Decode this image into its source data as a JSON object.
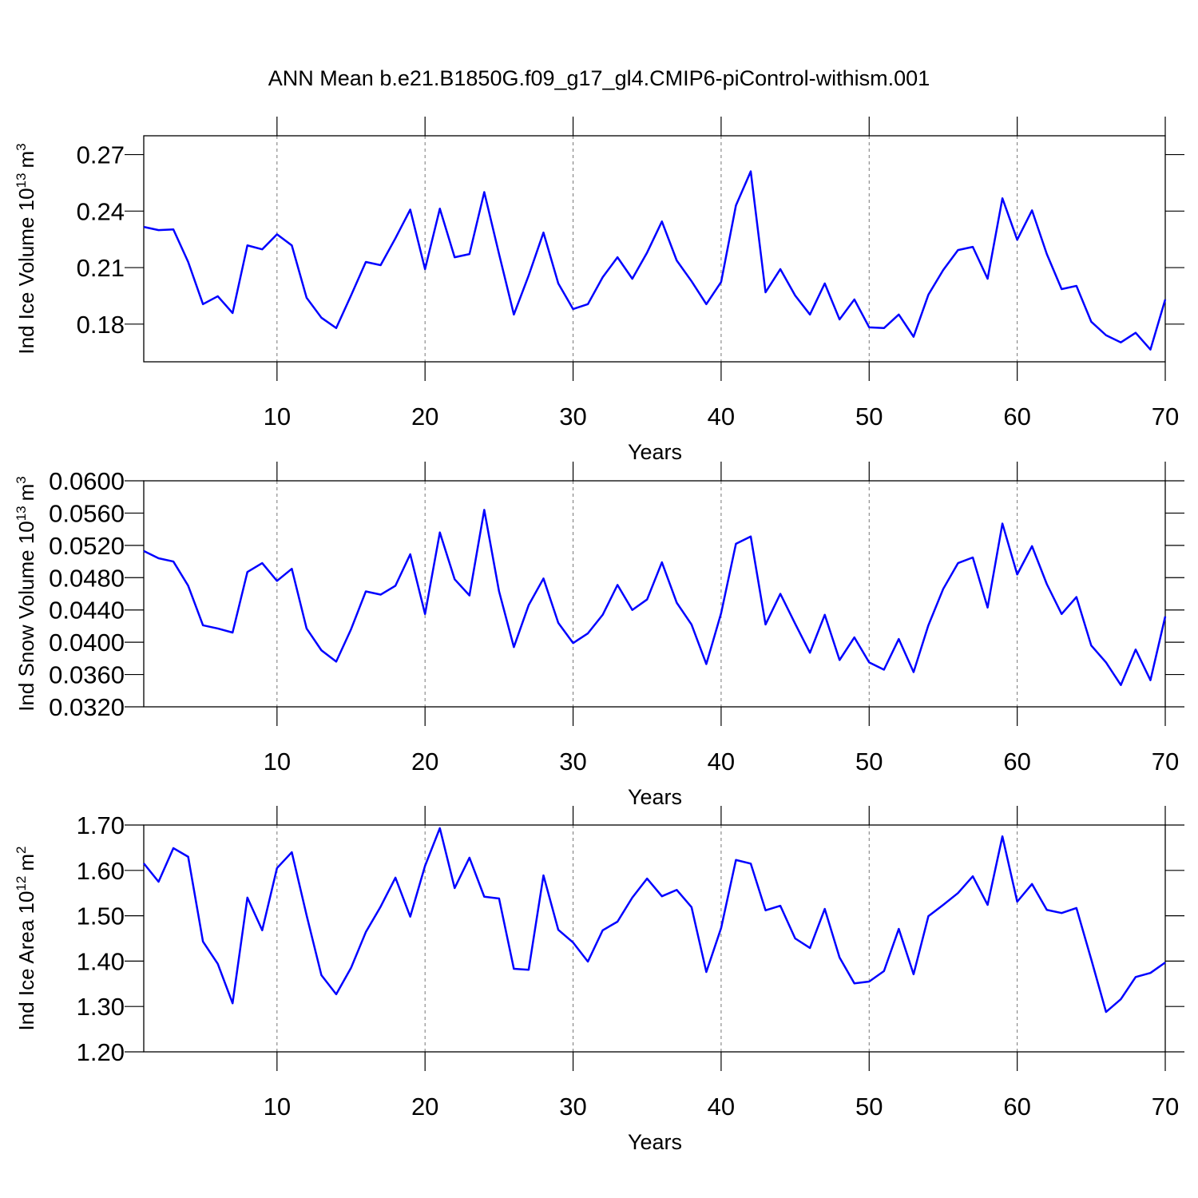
{
  "title": "ANN Mean b.e21.B1850G.f09_g17_gl4.CMIP6-piControl-withism.001",
  "chart_data": [
    {
      "type": "line",
      "xlabel": "Years",
      "ylabel": {
        "text": "Ind Ice Volume 10",
        "exp": "13",
        "unit": "m",
        "unit_exp": "3"
      },
      "xlim": [
        1,
        70
      ],
      "xticks": [
        10,
        20,
        30,
        40,
        50,
        60,
        70
      ],
      "ylim": [
        0.16,
        0.28
      ],
      "yticks": [
        0.18,
        0.21,
        0.24,
        0.27
      ],
      "xgrid": true,
      "x": [
        1,
        2,
        3,
        4,
        5,
        6,
        7,
        8,
        9,
        10,
        11,
        12,
        13,
        14,
        15,
        16,
        17,
        18,
        19,
        20,
        21,
        22,
        23,
        24,
        25,
        26,
        27,
        28,
        29,
        30,
        31,
        32,
        33,
        34,
        35,
        36,
        37,
        38,
        39,
        40,
        41,
        42,
        43,
        44,
        45,
        46,
        47,
        48,
        49,
        50,
        51,
        52,
        53,
        54,
        55,
        56,
        57,
        58,
        59,
        60,
        61,
        62,
        63,
        64,
        65,
        66,
        67,
        68,
        69,
        70
      ],
      "series": [
        {
          "color": "#0000ff",
          "values": [
            0.2316,
            0.2299,
            0.2303,
            0.213,
            0.1906,
            0.1948,
            0.1859,
            0.2218,
            0.2197,
            0.2277,
            0.2218,
            0.194,
            0.1834,
            0.1779,
            0.1952,
            0.213,
            0.2113,
            0.2256,
            0.2408,
            0.2092,
            0.2413,
            0.2155,
            0.2172,
            0.2501,
            0.2172,
            0.1851,
            0.2058,
            0.2286,
            0.2016,
            0.188,
            0.1906,
            0.2049,
            0.2155,
            0.2041,
            0.218,
            0.2345,
            0.2138,
            0.2028,
            0.1906,
            0.2024,
            0.243,
            0.2611,
            0.1969,
            0.2092,
            0.1952,
            0.1851,
            0.2016,
            0.1825,
            0.1931,
            0.1783,
            0.1779,
            0.1851,
            0.1733,
            0.1956,
            0.2087,
            0.2193,
            0.221,
            0.2041,
            0.2468,
            0.2248,
            0.2404,
            0.2172,
            0.1986,
            0.2003,
            0.1813,
            0.1741,
            0.1703,
            0.1754,
            0.1665,
            0.1931
          ]
        }
      ]
    },
    {
      "type": "line",
      "xlabel": "Years",
      "ylabel": {
        "text": "Ind Snow Volume 10",
        "exp": "13",
        "unit": "m",
        "unit_exp": "3"
      },
      "xlim": [
        1,
        70
      ],
      "xticks": [
        10,
        20,
        30,
        40,
        50,
        60,
        70
      ],
      "ylim": [
        0.032,
        0.06
      ],
      "yticks": [
        {
          "value": 0.032,
          "label": "0.0320"
        },
        {
          "value": 0.036,
          "label": "0.0360"
        },
        {
          "value": 0.04,
          "label": "0.0400"
        },
        {
          "value": 0.044,
          "label": "0.0440"
        },
        {
          "value": 0.048,
          "label": "0.0480"
        },
        {
          "value": 0.052,
          "label": "0.0520"
        },
        {
          "value": 0.056,
          "label": "0.0560"
        },
        {
          "value": 0.06,
          "label": "0.0600"
        }
      ],
      "xgrid": true,
      "x": [
        1,
        2,
        3,
        4,
        5,
        6,
        7,
        8,
        9,
        10,
        11,
        12,
        13,
        14,
        15,
        16,
        17,
        18,
        19,
        20,
        21,
        22,
        23,
        24,
        25,
        26,
        27,
        28,
        29,
        30,
        31,
        32,
        33,
        34,
        35,
        36,
        37,
        38,
        39,
        40,
        41,
        42,
        43,
        44,
        45,
        46,
        47,
        48,
        49,
        50,
        51,
        52,
        53,
        54,
        55,
        56,
        57,
        58,
        59,
        60,
        61,
        62,
        63,
        64,
        65,
        66,
        67,
        68,
        69,
        70
      ],
      "series": [
        {
          "color": "#0000ff",
          "values": [
            0.0513,
            0.0504,
            0.05,
            0.047,
            0.0421,
            0.0417,
            0.0412,
            0.0487,
            0.0498,
            0.0476,
            0.0491,
            0.0417,
            0.039,
            0.0376,
            0.0416,
            0.0463,
            0.0459,
            0.047,
            0.0509,
            0.0435,
            0.0536,
            0.0478,
            0.0458,
            0.0564,
            0.0463,
            0.0394,
            0.0446,
            0.0479,
            0.0424,
            0.0399,
            0.0411,
            0.0434,
            0.0471,
            0.044,
            0.0453,
            0.0499,
            0.0449,
            0.0422,
            0.0373,
            0.0436,
            0.0522,
            0.0531,
            0.0422,
            0.046,
            0.0423,
            0.0387,
            0.0434,
            0.0378,
            0.0406,
            0.0375,
            0.0366,
            0.0404,
            0.0363,
            0.0421,
            0.0466,
            0.0498,
            0.0505,
            0.0443,
            0.0547,
            0.0484,
            0.0519,
            0.0472,
            0.0435,
            0.0456,
            0.0396,
            0.0375,
            0.0347,
            0.0391,
            0.0353,
            0.0432
          ]
        }
      ]
    },
    {
      "type": "line",
      "xlabel": "Years",
      "ylabel": {
        "text": "Ind Ice Area 10",
        "exp": "12",
        "unit": "m",
        "unit_exp": "2"
      },
      "xlim": [
        1,
        70
      ],
      "xticks": [
        10,
        20,
        30,
        40,
        50,
        60,
        70
      ],
      "ylim": [
        1.2,
        1.7
      ],
      "yticks": [
        {
          "value": 1.2,
          "label": "1.20"
        },
        {
          "value": 1.3,
          "label": "1.30"
        },
        {
          "value": 1.4,
          "label": "1.40"
        },
        {
          "value": 1.5,
          "label": "1.50"
        },
        {
          "value": 1.6,
          "label": "1.60"
        },
        {
          "value": 1.7,
          "label": "1.70"
        }
      ],
      "xgrid": true,
      "x": [
        1,
        2,
        3,
        4,
        5,
        6,
        7,
        8,
        9,
        10,
        11,
        12,
        13,
        14,
        15,
        16,
        17,
        18,
        19,
        20,
        21,
        22,
        23,
        24,
        25,
        26,
        27,
        28,
        29,
        30,
        31,
        32,
        33,
        34,
        35,
        36,
        37,
        38,
        39,
        40,
        41,
        42,
        43,
        44,
        45,
        46,
        47,
        48,
        49,
        50,
        51,
        52,
        53,
        54,
        55,
        56,
        57,
        58,
        59,
        60,
        61,
        62,
        63,
        64,
        65,
        66,
        67,
        68,
        69,
        70
      ],
      "series": [
        {
          "color": "#0000ff",
          "values": [
            1.6155,
            1.575,
            1.649,
            1.63,
            1.443,
            1.394,
            1.307,
            1.54,
            1.468,
            1.605,
            1.64,
            1.501,
            1.369,
            1.327,
            1.385,
            1.464,
            1.52,
            1.584,
            1.498,
            1.61,
            1.693,
            1.561,
            1.628,
            1.542,
            1.538,
            1.383,
            1.381,
            1.589,
            1.469,
            1.441,
            1.399,
            1.468,
            1.487,
            1.54,
            1.582,
            1.543,
            1.557,
            1.519,
            1.376,
            1.473,
            1.623,
            1.615,
            1.512,
            1.522,
            1.45,
            1.429,
            1.515,
            1.408,
            1.351,
            1.355,
            1.378,
            1.471,
            1.371,
            1.499,
            1.524,
            1.55,
            1.587,
            1.524,
            1.675,
            1.531,
            1.57,
            1.513,
            1.506,
            1.517,
            1.404,
            1.288,
            1.316,
            1.365,
            1.374,
            1.397
          ]
        }
      ]
    }
  ]
}
